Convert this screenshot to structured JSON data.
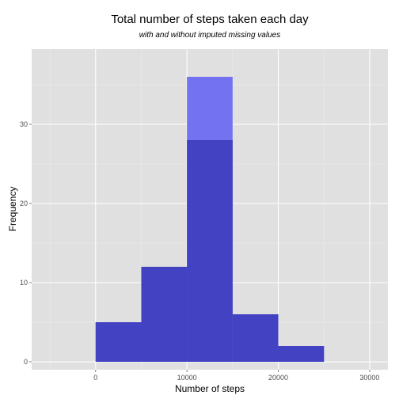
{
  "chart_data": {
    "type": "bar",
    "title": "Total number of steps taken each day",
    "subtitle": "with and without imputed missing values",
    "xlabel": "Number of steps",
    "ylabel": "Frequency",
    "xlim": [
      -7000,
      32000
    ],
    "ylim": [
      -1,
      39.5
    ],
    "xticks": [
      {
        "value": 0,
        "label": "0"
      },
      {
        "value": 10000,
        "label": "10000"
      },
      {
        "value": 20000,
        "label": "20000"
      },
      {
        "value": 30000,
        "label": "30000"
      }
    ],
    "yticks": [
      {
        "value": 0,
        "label": "0"
      },
      {
        "value": 10,
        "label": "10"
      },
      {
        "value": 20,
        "label": "20"
      },
      {
        "value": 30,
        "label": "30"
      }
    ],
    "grid": true,
    "bin_width": 5000,
    "bins": [
      0,
      5000,
      10000,
      15000,
      20000
    ],
    "series": [
      {
        "values": [
          5,
          12,
          36,
          6,
          2
        ],
        "color": "#7373f2"
      },
      {
        "values": [
          5,
          12,
          28,
          6,
          2
        ],
        "color": "#4242c2"
      }
    ],
    "colors": {
      "panel": "#e0e0e0",
      "grid_major": "#ffffff",
      "grid_minor": "#ececec"
    }
  }
}
